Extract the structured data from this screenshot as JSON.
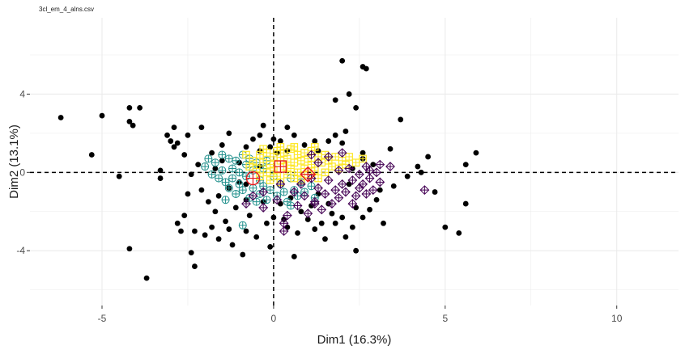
{
  "chart_data": {
    "type": "scatter",
    "title": "3cl_em_4_alns.csv",
    "xlabel": "Dim1 (16.3%)",
    "ylabel": "Dim2 (13.1%)",
    "xlim": [
      -7.1,
      11.8
    ],
    "ylim": [
      -6.8,
      7.9
    ],
    "xticks": [
      -5,
      0,
      5,
      10
    ],
    "yticks": [
      -4,
      0,
      4
    ],
    "grid": true,
    "reference_lines": {
      "x": 0,
      "y": 0,
      "style": "dashed"
    },
    "colors": {
      "background": "#ffffff",
      "gridline": "#ebebeb",
      "black_points": "#000000",
      "cluster_teal": "#21908c",
      "cluster_yellow": "#fde725",
      "cluster_purple": "#440154",
      "centroid": "#e41a1c"
    },
    "series": [
      {
        "marker": "filled-circle",
        "color": "#000000",
        "points": [
          [
            -6.2,
            2.8
          ],
          [
            -5.3,
            0.9
          ],
          [
            -5.0,
            2.9
          ],
          [
            -4.5,
            -0.2
          ],
          [
            -4.2,
            3.3
          ],
          [
            -4.2,
            2.6
          ],
          [
            -4.1,
            2.4
          ],
          [
            -3.9,
            3.3
          ],
          [
            -4.2,
            -3.9
          ],
          [
            -3.7,
            -5.4
          ],
          [
            -3.3,
            0.1
          ],
          [
            -3.3,
            -0.3
          ],
          [
            -3.1,
            1.9
          ],
          [
            -3.0,
            1.6
          ],
          [
            -2.9,
            2.3
          ],
          [
            -2.9,
            1.3
          ],
          [
            -2.8,
            1.5
          ],
          [
            -2.8,
            -2.6
          ],
          [
            -2.7,
            -3.0
          ],
          [
            -2.6,
            0.9
          ],
          [
            -2.6,
            -2.2
          ],
          [
            -2.5,
            1.9
          ],
          [
            -2.4,
            -4.1
          ],
          [
            -2.4,
            -0.1
          ],
          [
            -2.3,
            -3.0
          ],
          [
            -2.5,
            -1.1
          ],
          [
            -2.3,
            -4.8
          ],
          [
            -2.2,
            0.4
          ],
          [
            -2.1,
            -0.9
          ],
          [
            -2.0,
            -3.2
          ],
          [
            -1.9,
            -1.5
          ],
          [
            -1.8,
            -2.8
          ],
          [
            -1.7,
            -2.0
          ],
          [
            -1.6,
            -3.4
          ],
          [
            -1.6,
            -1.2
          ],
          [
            -1.5,
            0.6
          ],
          [
            -1.5,
            1.4
          ],
          [
            -1.4,
            -2.5
          ],
          [
            -1.3,
            -0.8
          ],
          [
            -1.3,
            -2.9
          ],
          [
            -1.2,
            -3.7
          ],
          [
            -1.1,
            -1.8
          ],
          [
            -1.0,
            -0.5
          ],
          [
            -0.9,
            -4.2
          ],
          [
            -0.8,
            -1.4
          ],
          [
            -0.8,
            -3.0
          ],
          [
            -0.7,
            -2.2
          ],
          [
            -0.6,
            1.7
          ],
          [
            -0.5,
            -3.3
          ],
          [
            -0.4,
            0.3
          ],
          [
            -0.3,
            -1.5
          ],
          [
            -0.2,
            -2.6
          ],
          [
            -0.1,
            -3.8
          ],
          [
            0.0,
            -2.3
          ],
          [
            0.1,
            1.0
          ],
          [
            0.2,
            -1.6
          ],
          [
            0.3,
            -2.4
          ],
          [
            0.4,
            -2.8
          ],
          [
            0.5,
            -1.3
          ],
          [
            0.6,
            -4.3
          ],
          [
            0.7,
            -3.1
          ],
          [
            0.8,
            -2.0
          ],
          [
            1.0,
            -2.4
          ],
          [
            1.1,
            -1.7
          ],
          [
            1.2,
            -2.9
          ],
          [
            1.3,
            -1.1
          ],
          [
            1.4,
            -2.6
          ],
          [
            1.5,
            -3.4
          ],
          [
            1.6,
            -1.6
          ],
          [
            1.7,
            -2.1
          ],
          [
            1.8,
            -2.6
          ],
          [
            2.0,
            -2.3
          ],
          [
            2.1,
            -3.3
          ],
          [
            2.3,
            -2.8
          ],
          [
            2.4,
            -1.8
          ],
          [
            2.4,
            -4.0
          ],
          [
            2.6,
            -2.3
          ],
          [
            2.8,
            -1.9
          ],
          [
            3.0,
            -1.4
          ],
          [
            3.2,
            -2.6
          ],
          [
            -1.7,
            0.2
          ],
          [
            -1.8,
            1.0
          ],
          [
            -1.0,
            0.5
          ],
          [
            -0.8,
            1.3
          ],
          [
            -0.4,
            1.1
          ],
          [
            -0.1,
            1.3
          ],
          [
            0.2,
            1.6
          ],
          [
            0.4,
            1.1
          ],
          [
            0.9,
            1.4
          ],
          [
            1.2,
            1.6
          ],
          [
            1.3,
            1.1
          ],
          [
            1.6,
            1.6
          ],
          [
            1.8,
            1.9
          ],
          [
            2.0,
            1.5
          ],
          [
            2.1,
            2.1
          ],
          [
            1.8,
            3.7
          ],
          [
            2.4,
            3.3
          ],
          [
            2.6,
            5.4
          ],
          [
            2.7,
            5.3
          ],
          [
            2.0,
            5.7
          ],
          [
            2.2,
            4.0
          ],
          [
            3.7,
            2.7
          ],
          [
            2.6,
            1.0
          ],
          [
            3.4,
            1.2
          ],
          [
            3.9,
            -0.2
          ],
          [
            4.2,
            0.3
          ],
          [
            4.5,
            0.8
          ],
          [
            4.7,
            -1.0
          ],
          [
            5.0,
            -2.8
          ],
          [
            5.4,
            -3.1
          ],
          [
            5.6,
            -1.6
          ],
          [
            5.6,
            0.4
          ],
          [
            5.9,
            1.0
          ],
          [
            4.3,
            0.0
          ],
          [
            3.5,
            -0.7
          ],
          [
            3.1,
            -0.9
          ],
          [
            2.9,
            0.4
          ],
          [
            2.6,
            0.7
          ],
          [
            2.3,
            0.2
          ],
          [
            2.2,
            -0.6
          ],
          [
            -0.8,
            -0.6
          ],
          [
            0.0,
            1.7
          ],
          [
            0.4,
            2.3
          ],
          [
            0.6,
            1.9
          ],
          [
            -0.4,
            1.9
          ],
          [
            -0.3,
            2.4
          ],
          [
            -1.3,
            2.0
          ],
          [
            -2.1,
            2.3
          ]
        ]
      },
      {
        "marker": "crossed-circle",
        "color": "#21908c",
        "points": [
          [
            -2.0,
            0.3
          ],
          [
            -1.9,
            0.7
          ],
          [
            -1.8,
            -0.1
          ],
          [
            -1.7,
            0.5
          ],
          [
            -1.6,
            -0.3
          ],
          [
            -1.5,
            0.9
          ],
          [
            -1.5,
            0.1
          ],
          [
            -1.4,
            -0.5
          ],
          [
            -1.3,
            0.7
          ],
          [
            -1.3,
            -0.8
          ],
          [
            -1.2,
            0.2
          ],
          [
            -1.2,
            -0.3
          ],
          [
            -1.1,
            0.6
          ],
          [
            -1.1,
            -1.1
          ],
          [
            -1.0,
            0.0
          ],
          [
            -1.0,
            -0.6
          ],
          [
            -0.9,
            0.9
          ],
          [
            -0.9,
            -0.9
          ],
          [
            -0.8,
            0.4
          ],
          [
            -0.8,
            -0.2
          ],
          [
            -0.7,
            -1.3
          ],
          [
            -0.7,
            0.7
          ],
          [
            -0.6,
            -0.8
          ],
          [
            -0.6,
            0.1
          ],
          [
            -0.5,
            -1.5
          ],
          [
            -0.5,
            0.5
          ],
          [
            -0.4,
            -0.4
          ],
          [
            -0.4,
            -1.1
          ],
          [
            -0.3,
            0.2
          ],
          [
            -0.3,
            -0.7
          ],
          [
            -0.2,
            -1.4
          ],
          [
            -0.2,
            0.6
          ],
          [
            -0.1,
            -0.9
          ],
          [
            0.0,
            -0.2
          ],
          [
            0.1,
            -1.2
          ],
          [
            0.2,
            -0.6
          ],
          [
            0.3,
            -1.0
          ],
          [
            0.4,
            -1.5
          ],
          [
            0.5,
            -0.3
          ],
          [
            0.6,
            -0.9
          ],
          [
            0.7,
            -1.2
          ],
          [
            0.8,
            -0.5
          ],
          [
            0.9,
            -1.0
          ],
          [
            1.1,
            -0.7
          ],
          [
            1.2,
            -1.3
          ],
          [
            -0.9,
            -2.7
          ],
          [
            0.5,
            -1.7
          ],
          [
            -1.4,
            -1.4
          ]
        ]
      },
      {
        "marker": "crossed-square",
        "color": "#fde725",
        "points": [
          [
            -0.6,
            0.6
          ],
          [
            -0.5,
            0.2
          ],
          [
            -0.4,
            0.9
          ],
          [
            -0.4,
            -0.2
          ],
          [
            -0.3,
            0.5
          ],
          [
            -0.2,
            1.0
          ],
          [
            -0.2,
            0.0
          ],
          [
            -0.1,
            0.4
          ],
          [
            -0.1,
            -0.4
          ],
          [
            0.0,
            0.8
          ],
          [
            0.0,
            0.1
          ],
          [
            0.1,
            1.1
          ],
          [
            0.1,
            -0.2
          ],
          [
            0.2,
            0.6
          ],
          [
            0.2,
            -0.5
          ],
          [
            0.3,
            0.3
          ],
          [
            0.3,
            1.0
          ],
          [
            0.4,
            -0.1
          ],
          [
            0.4,
            0.7
          ],
          [
            0.5,
            0.2
          ],
          [
            0.5,
            1.2
          ],
          [
            0.6,
            -0.3
          ],
          [
            0.6,
            0.5
          ],
          [
            0.7,
            0.9
          ],
          [
            0.7,
            0.0
          ],
          [
            0.8,
            0.6
          ],
          [
            0.8,
            -0.4
          ],
          [
            0.9,
            1.0
          ],
          [
            0.9,
            0.2
          ],
          [
            1.0,
            0.7
          ],
          [
            1.0,
            -0.1
          ],
          [
            1.1,
            0.4
          ],
          [
            1.1,
            1.1
          ],
          [
            1.2,
            0.1
          ],
          [
            1.3,
            0.8
          ],
          [
            1.3,
            -0.3
          ],
          [
            1.4,
            0.5
          ],
          [
            1.5,
            0.9
          ],
          [
            1.5,
            0.0
          ],
          [
            1.6,
            0.6
          ],
          [
            1.7,
            0.3
          ],
          [
            1.8,
            0.8
          ],
          [
            1.9,
            0.2
          ],
          [
            2.0,
            0.6
          ],
          [
            2.1,
            0.4
          ],
          [
            2.2,
            0.8
          ],
          [
            2.4,
            0.5
          ],
          [
            2.6,
            0.7
          ],
          [
            -0.8,
            0.9
          ],
          [
            -0.7,
            0.3
          ],
          [
            0.2,
            1.3
          ],
          [
            1.2,
            1.3
          ],
          [
            0.6,
            1.3
          ],
          [
            -0.3,
            1.2
          ]
        ]
      },
      {
        "marker": "crossed-diamond",
        "color": "#440154",
        "points": [
          [
            -0.8,
            -1.6
          ],
          [
            -0.6,
            -1.2
          ],
          [
            -0.3,
            -1.8
          ],
          [
            0.1,
            -1.4
          ],
          [
            0.4,
            -2.2
          ],
          [
            0.6,
            -1.0
          ],
          [
            0.7,
            -1.7
          ],
          [
            0.8,
            -0.6
          ],
          [
            0.9,
            -1.2
          ],
          [
            1.0,
            -2.1
          ],
          [
            1.1,
            -0.3
          ],
          [
            1.2,
            -1.5
          ],
          [
            1.3,
            -0.8
          ],
          [
            1.3,
            0.5
          ],
          [
            1.4,
            -1.9
          ],
          [
            1.5,
            -1.1
          ],
          [
            1.6,
            -0.4
          ],
          [
            1.7,
            -1.6
          ],
          [
            1.8,
            -0.9
          ],
          [
            1.9,
            0.1
          ],
          [
            1.9,
            -1.3
          ],
          [
            2.0,
            -0.6
          ],
          [
            2.1,
            -1.0
          ],
          [
            2.2,
            0.2
          ],
          [
            2.3,
            -0.4
          ],
          [
            2.4,
            -1.2
          ],
          [
            2.5,
            -0.1
          ],
          [
            2.6,
            -0.6
          ],
          [
            2.7,
            0.3
          ],
          [
            2.8,
            -0.3
          ],
          [
            2.9,
            -0.9
          ],
          [
            3.0,
            0.0
          ],
          [
            3.1,
            -0.5
          ],
          [
            2.3,
            -1.6
          ],
          [
            2.7,
            -1.1
          ],
          [
            3.1,
            0.4
          ],
          [
            3.4,
            0.3
          ],
          [
            0.3,
            -2.6
          ],
          [
            0.3,
            -3.0
          ],
          [
            1.6,
            0.8
          ],
          [
            2.0,
            1.0
          ],
          [
            -0.3,
            -1.0
          ],
          [
            0.2,
            -0.6
          ],
          [
            4.4,
            -0.9
          ],
          [
            1.2,
            -1.6
          ],
          [
            2.5,
            -0.8
          ],
          [
            2.8,
            0.1
          ],
          [
            1.1,
            0.9
          ]
        ]
      },
      {
        "marker": "centroid-circle",
        "color": "#e41a1c",
        "points": [
          [
            -0.6,
            -0.3
          ]
        ]
      },
      {
        "marker": "centroid-square",
        "color": "#e41a1c",
        "points": [
          [
            0.2,
            0.3
          ]
        ]
      },
      {
        "marker": "centroid-diamond",
        "color": "#e41a1c",
        "points": [
          [
            1.0,
            -0.1
          ]
        ]
      }
    ]
  }
}
